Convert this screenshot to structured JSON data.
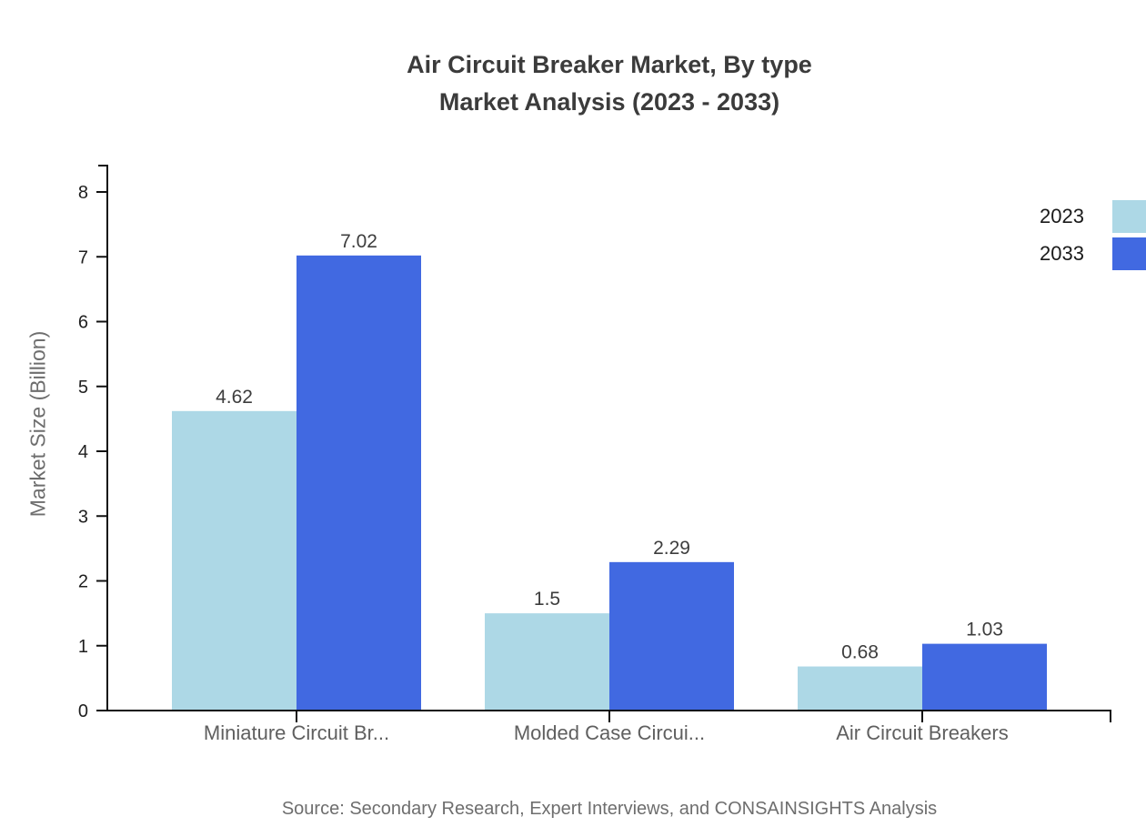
{
  "title": {
    "line1": "Air Circuit Breaker Market, By type",
    "line2": "Market Analysis (2023 - 2033)"
  },
  "source_text": "Source: Secondary Research, Expert Interviews, and CONSAINSIGHTS Analysis",
  "chart_data": {
    "type": "bar",
    "title": "Air Circuit Breaker Market, By type Market Analysis (2023 - 2033)",
    "categories": [
      "Miniature Circuit Br...",
      "Molded Case Circui...",
      "Air Circuit Breakers"
    ],
    "series": [
      {
        "name": "2023",
        "color": "#ADD8E6",
        "values": [
          4.62,
          1.5,
          0.68
        ]
      },
      {
        "name": "2033",
        "color": "#4169E1",
        "values": [
          7.02,
          2.29,
          1.03
        ]
      }
    ],
    "value_labels": [
      [
        "4.62",
        "1.5",
        "0.68"
      ],
      [
        "7.02",
        "2.29",
        "1.03"
      ]
    ],
    "xlabel": "",
    "ylabel": "Market Size (Billion)",
    "ylim": [
      0,
      8
    ],
    "yticks": [
      0,
      1,
      2,
      3,
      4,
      5,
      6,
      7,
      8
    ],
    "grid": false,
    "legend_position": "top-right",
    "colors": {
      "axis": "#111111",
      "tick_label": "#1f1f1f",
      "category_label": "#5f5f5f",
      "value_label": "#3d3d3d",
      "title_text": "#3b3b3b",
      "muted_text": "#6e6e6e"
    }
  }
}
